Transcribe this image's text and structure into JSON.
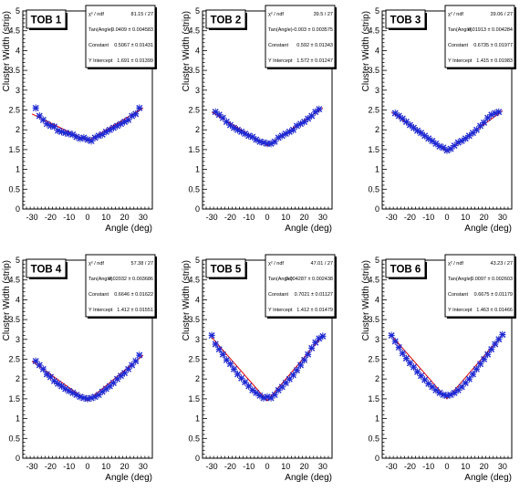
{
  "colors": {
    "markers": "#1f2bd6",
    "errorbars": "#0000aa",
    "fit": "#e00000",
    "frame": "#000000"
  },
  "common": {
    "xlabel": "Angle (deg)",
    "ylabel": "Cluster Width (strip)",
    "xticks": [
      "-30",
      "-20",
      "-10",
      "0",
      "10",
      "20",
      "30"
    ],
    "yticks": [
      "0",
      "0.5",
      "1",
      "1.5",
      "2",
      "2.5",
      "3",
      "3.5",
      "4",
      "4.5",
      "5"
    ],
    "stats_labels": [
      "χ² / ndf",
      "Tan(Angle)",
      "Constant",
      "Y Intercept"
    ]
  },
  "chart_data": [
    {
      "type": "scatter",
      "title": "TOB 1",
      "xlabel": "Angle (deg)",
      "ylabel": "Cluster Width (strip)",
      "xlim": [
        -35,
        35
      ],
      "ylim": [
        0,
        5
      ],
      "grid": false,
      "stats": {
        "chi2_ndf": "81.15 / 27",
        "tan_angle": "0.0409 ± 0.004583",
        "constant": "0.5067 ± 0.01431",
        "y_intercept": "1.691 ± 0.01399"
      },
      "x": [
        -28,
        -26,
        -24,
        -22,
        -20,
        -18,
        -16,
        -14,
        -12,
        -10,
        -8,
        -6,
        -4,
        -2,
        0,
        2,
        4,
        6,
        8,
        10,
        12,
        14,
        16,
        18,
        20,
        22,
        24,
        26,
        28
      ],
      "values": [
        2.55,
        2.35,
        2.25,
        2.15,
        2.1,
        2.08,
        1.98,
        1.95,
        1.92,
        1.9,
        1.88,
        1.82,
        1.78,
        1.8,
        1.75,
        1.72,
        1.8,
        1.85,
        1.88,
        1.95,
        2.0,
        2.05,
        2.1,
        2.15,
        2.2,
        2.25,
        2.35,
        2.4,
        2.55
      ],
      "fit": [
        [
          -30,
          2.4
        ],
        [
          0,
          1.72
        ],
        [
          30,
          2.55
        ]
      ]
    },
    {
      "type": "scatter",
      "title": "TOB 2",
      "xlabel": "Angle (deg)",
      "ylabel": "Cluster Width (strip)",
      "xlim": [
        -35,
        35
      ],
      "ylim": [
        0,
        5
      ],
      "grid": false,
      "stats": {
        "chi2_ndf": "39.5 / 27",
        "tan_angle": "-0.003 ± 0.003575",
        "constant": "0.592 ± 0.01343",
        "y_intercept": "1.572 ± 0.01247"
      },
      "x": [
        -28,
        -26,
        -24,
        -22,
        -20,
        -18,
        -16,
        -14,
        -12,
        -10,
        -8,
        -6,
        -4,
        -2,
        0,
        2,
        4,
        6,
        8,
        10,
        12,
        14,
        16,
        18,
        20,
        22,
        24,
        26,
        28
      ],
      "values": [
        2.45,
        2.38,
        2.3,
        2.2,
        2.12,
        2.05,
        2.0,
        1.95,
        1.9,
        1.85,
        1.82,
        1.75,
        1.7,
        1.68,
        1.65,
        1.65,
        1.7,
        1.8,
        1.85,
        1.9,
        1.95,
        2.0,
        2.1,
        2.15,
        2.2,
        2.28,
        2.35,
        2.45,
        2.52
      ],
      "fit": [
        [
          -30,
          2.45
        ],
        [
          0,
          1.6
        ],
        [
          30,
          2.55
        ]
      ]
    },
    {
      "type": "scatter",
      "title": "TOB 3",
      "xlabel": "Angle (deg)",
      "ylabel": "Cluster Width (strip)",
      "xlim": [
        -35,
        35
      ],
      "ylim": [
        0,
        5
      ],
      "grid": false,
      "stats": {
        "chi2_ndf": "39.06 / 27",
        "tan_angle": "0.01913 ± 0.004284",
        "constant": "0.6735 ± 0.01977",
        "y_intercept": "1.415 ± 0.01983"
      },
      "x": [
        -28,
        -26,
        -24,
        -22,
        -20,
        -18,
        -16,
        -14,
        -12,
        -10,
        -8,
        -6,
        -4,
        -2,
        0,
        2,
        4,
        6,
        8,
        10,
        12,
        14,
        16,
        18,
        20,
        22,
        24,
        26,
        28
      ],
      "values": [
        2.42,
        2.35,
        2.28,
        2.2,
        2.12,
        2.05,
        1.98,
        1.92,
        1.85,
        1.78,
        1.72,
        1.65,
        1.58,
        1.55,
        1.48,
        1.52,
        1.6,
        1.68,
        1.72,
        1.78,
        1.85,
        1.92,
        2.0,
        2.1,
        2.18,
        2.3,
        2.38,
        2.42,
        2.45
      ],
      "fit": [
        [
          -30,
          2.45
        ],
        [
          0,
          1.45
        ],
        [
          30,
          2.48
        ]
      ]
    },
    {
      "type": "scatter",
      "title": "TOB 4",
      "xlabel": "Angle (deg)",
      "ylabel": "Cluster Width (strip)",
      "xlim": [
        -35,
        35
      ],
      "ylim": [
        0,
        5
      ],
      "grid": false,
      "stats": {
        "chi2_ndf": "57.38 / 27",
        "tan_angle": "0.02032 ± 0.003686",
        "constant": "0.6646 ± 0.01622",
        "y_intercept": "1.412 ± 0.01551"
      },
      "x": [
        -28,
        -26,
        -24,
        -22,
        -20,
        -18,
        -16,
        -14,
        -12,
        -10,
        -8,
        -6,
        -4,
        -2,
        0,
        2,
        4,
        6,
        8,
        10,
        12,
        14,
        16,
        18,
        20,
        22,
        24,
        26,
        28
      ],
      "values": [
        2.45,
        2.35,
        2.25,
        2.12,
        2.05,
        1.95,
        1.88,
        1.82,
        1.75,
        1.7,
        1.65,
        1.6,
        1.55,
        1.52,
        1.5,
        1.52,
        1.55,
        1.6,
        1.68,
        1.75,
        1.82,
        1.9,
        2.0,
        2.08,
        2.15,
        2.25,
        2.35,
        2.45,
        2.6
      ],
      "fit": [
        [
          -30,
          2.45
        ],
        [
          0,
          1.45
        ],
        [
          30,
          2.6
        ]
      ]
    },
    {
      "type": "scatter",
      "title": "TOB 5",
      "xlabel": "Angle (deg)",
      "ylabel": "Cluster Width (strip)",
      "xlim": [
        -35,
        35
      ],
      "ylim": [
        0,
        5
      ],
      "grid": false,
      "stats": {
        "chi2_ndf": "47.01 / 27",
        "tan_angle": "0.004287 ± 0.002438",
        "constant": "0.7021 ± 0.01127",
        "y_intercept": "1.412 ± 0.01479"
      },
      "x": [
        -30,
        -28,
        -26,
        -24,
        -22,
        -20,
        -18,
        -16,
        -14,
        -12,
        -10,
        -8,
        -6,
        -4,
        -2,
        0,
        2,
        4,
        6,
        8,
        10,
        12,
        14,
        16,
        18,
        20,
        22,
        24,
        26,
        28,
        30
      ],
      "values": [
        3.1,
        2.88,
        2.75,
        2.62,
        2.48,
        2.38,
        2.25,
        2.12,
        2.02,
        1.92,
        1.82,
        1.72,
        1.65,
        1.58,
        1.52,
        1.55,
        1.52,
        1.6,
        1.72,
        1.8,
        1.9,
        2.0,
        2.1,
        2.22,
        2.35,
        2.48,
        2.62,
        2.78,
        2.92,
        3.02,
        3.08
      ],
      "fit": [
        [
          -30,
          3.05
        ],
        [
          0,
          1.45
        ],
        [
          30,
          3.1
        ]
      ]
    },
    {
      "type": "scatter",
      "title": "TOB 6",
      "xlabel": "Angle (deg)",
      "ylabel": "Cluster Width (strip)",
      "xlim": [
        -35,
        35
      ],
      "ylim": [
        0,
        5
      ],
      "grid": false,
      "stats": {
        "chi2_ndf": "43.23 / 27",
        "tan_angle": "0.0097 ± 0.002603",
        "constant": "0.6675 ± 0.01179",
        "y_intercept": "1.463 ± 0.01466"
      },
      "x": [
        -30,
        -28,
        -26,
        -24,
        -22,
        -20,
        -18,
        -16,
        -14,
        -12,
        -10,
        -8,
        -6,
        -4,
        -2,
        0,
        2,
        4,
        6,
        8,
        10,
        12,
        14,
        16,
        18,
        20,
        22,
        24,
        26,
        28,
        30
      ],
      "values": [
        3.1,
        2.95,
        2.8,
        2.65,
        2.52,
        2.4,
        2.3,
        2.18,
        2.08,
        1.98,
        1.88,
        1.8,
        1.72,
        1.65,
        1.6,
        1.58,
        1.6,
        1.65,
        1.72,
        1.8,
        1.9,
        2.0,
        2.12,
        2.25,
        2.38,
        2.5,
        2.62,
        2.75,
        2.88,
        3.0,
        3.12
      ],
      "fit": [
        [
          -30,
          3.1
        ],
        [
          0,
          1.5
        ],
        [
          30,
          3.12
        ]
      ]
    }
  ]
}
